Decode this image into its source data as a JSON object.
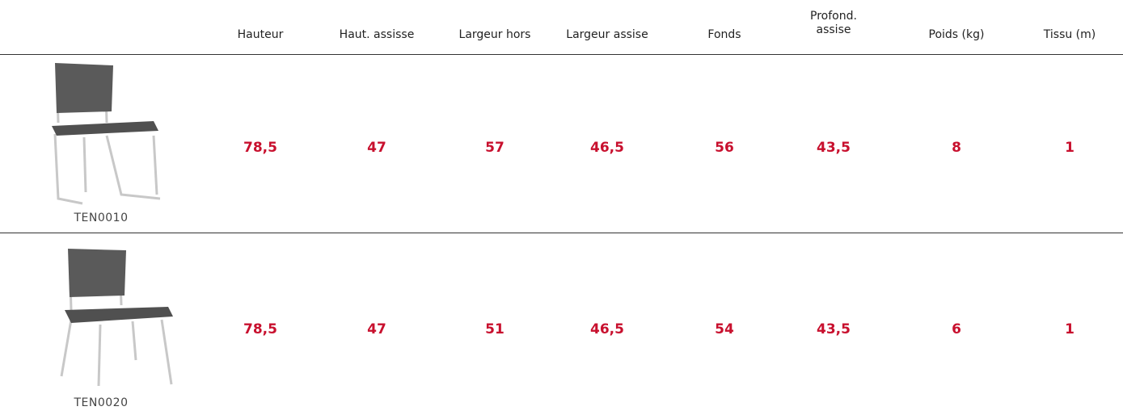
{
  "table": {
    "headers": [
      "Hauteur",
      "Haut. assisse",
      "Largeur hors",
      "Largeur assise",
      "Fonds",
      "Profond. assise",
      "Poids (kg)",
      "Tissu (m)"
    ],
    "rows": [
      {
        "code": "TEN0010",
        "values": [
          "78,5",
          "47",
          "57",
          "46,5",
          "56",
          "43,5",
          "8",
          "1"
        ]
      },
      {
        "code": "TEN0020",
        "values": [
          "78,5",
          "47",
          "51",
          "46,5",
          "54",
          "43,5",
          "6",
          "1"
        ]
      }
    ]
  }
}
